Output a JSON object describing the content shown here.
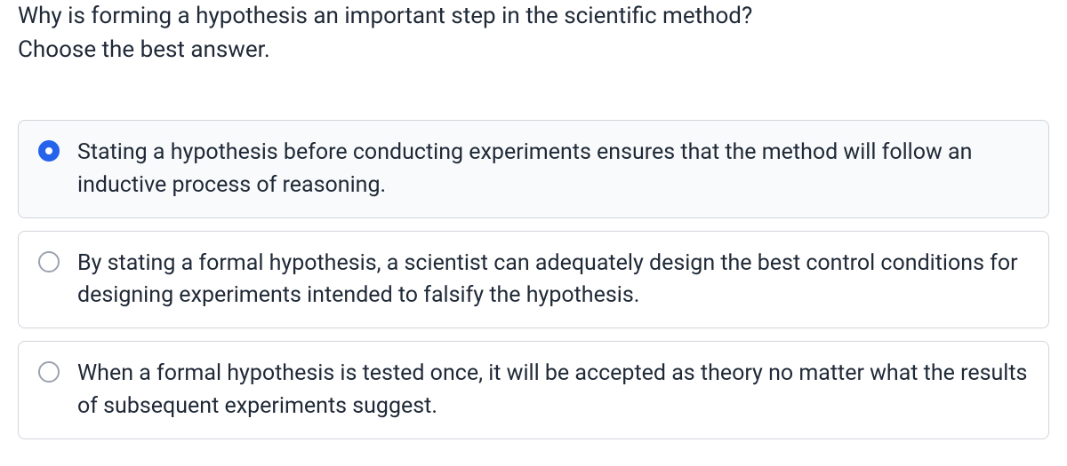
{
  "question": {
    "prompt_line1": "Why is forming a hypothesis an important step in the scientific method?",
    "prompt_line2": "Choose the best answer."
  },
  "options": [
    {
      "text": "Stating a hypothesis before conducting experiments ensures that the method will follow an inductive process of reasoning.",
      "selected": true
    },
    {
      "text": "By stating a formal hypothesis, a scientist can adequately design the best control conditions for designing experiments intended to falsify the hypothesis.",
      "selected": false
    },
    {
      "text": "When a formal hypothesis is tested once, it will be accepted as theory no matter what the results of subsequent experiments suggest.",
      "selected": false
    }
  ],
  "colors": {
    "text": "#1f2937",
    "border": "#d1d5db",
    "radio_border": "#9ca3af",
    "accent": "#2563eb",
    "selected_bg": "#f9fafb",
    "background": "#ffffff"
  },
  "typography": {
    "question_fontsize": 26,
    "option_fontsize": 25,
    "line_height": 1.45
  }
}
